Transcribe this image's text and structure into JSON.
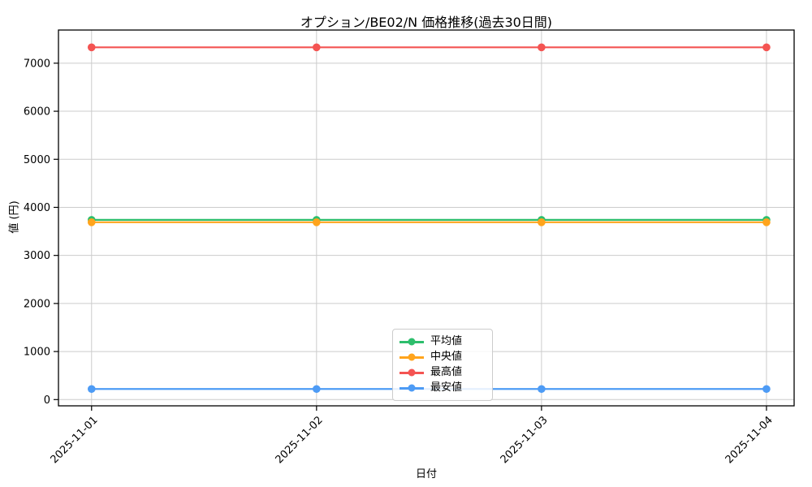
{
  "chart_data": {
    "type": "line",
    "title": "オプション/BE02/N 価格推移(過去30日間)",
    "xlabel": "日付",
    "ylabel": "値 (円)",
    "x": [
      "2025-11-01",
      "2025-11-02",
      "2025-11-03",
      "2025-11-04"
    ],
    "series": [
      {
        "name": "平均値",
        "color": "#2dbe6c",
        "values": [
          3740,
          3740,
          3740,
          3740
        ]
      },
      {
        "name": "中央値",
        "color": "#ffa41c",
        "values": [
          3690,
          3690,
          3690,
          3690
        ]
      },
      {
        "name": "最高値",
        "color": "#f45452",
        "values": [
          7330,
          7330,
          7330,
          7330
        ]
      },
      {
        "name": "最安値",
        "color": "#4d9bf5",
        "values": [
          220,
          220,
          220,
          220
        ]
      }
    ],
    "yticks": [
      0,
      1000,
      2000,
      3000,
      4000,
      5000,
      6000,
      7000
    ],
    "ylim": [
      -130,
      7690
    ],
    "grid": true,
    "grid_color": "#cccccc",
    "spine_color": "#000000",
    "legend_position": "lower center",
    "x_tick_rotation_deg": 45
  }
}
